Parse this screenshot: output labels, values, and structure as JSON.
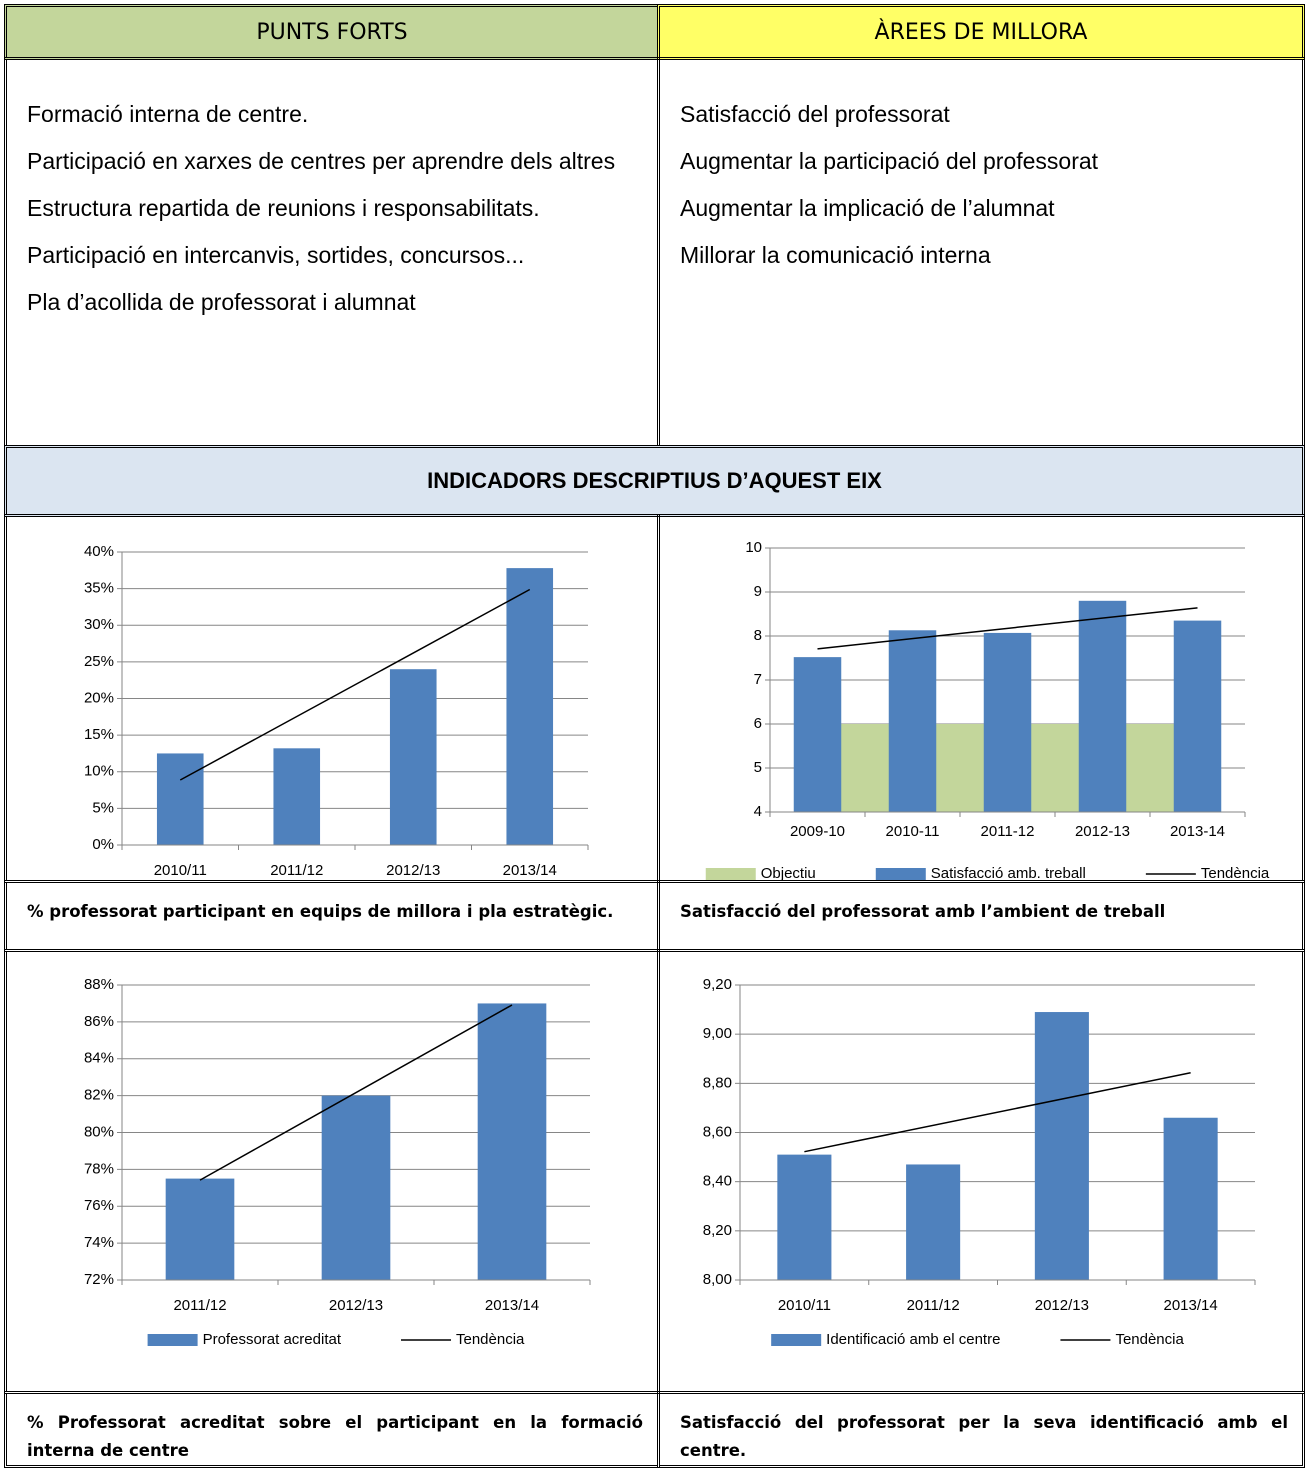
{
  "punts_forts": {
    "title": "PUNTS FORTS",
    "items": [
      "Formació interna de centre.",
      "Participació en xarxes de centres per aprendre dels altres",
      "Estructura repartida de reunions i responsabilitats.",
      "Participació en intercanvis, sortides, concursos...",
      "Pla d’acollida de professorat i alumnat"
    ]
  },
  "arees_de_millora": {
    "title": "ÀREES DE MILLORA",
    "items": [
      "Satisfacció del professorat",
      "Augmentar la participació del professorat",
      "Augmentar la implicació de l’alumnat",
      "Millorar la comunicació interna"
    ]
  },
  "indicadors": {
    "title": "INDICADORS DESCRIPTIUS D’AQUEST EIX"
  },
  "chart_data": [
    {
      "type": "bar",
      "caption": "% professorat participant en equips de millora i pla estratègic.",
      "categories": [
        "2010/11",
        "2011/12",
        "2012/13",
        "2013/14"
      ],
      "series": [
        {
          "kind": "bar",
          "color": "#4f81bd",
          "values": [
            12.5,
            13.2,
            24,
            37.8
          ]
        }
      ],
      "trend": {
        "color": "#000000"
      },
      "ylim": [
        0,
        40
      ],
      "yticks": [
        {
          "value": 0,
          "label": "0%"
        },
        {
          "value": 5,
          "label": "5%"
        },
        {
          "value": 10,
          "label": "10%"
        },
        {
          "value": 15,
          "label": "15%"
        },
        {
          "value": 20,
          "label": "20%"
        },
        {
          "value": 25,
          "label": "25%"
        },
        {
          "value": 30,
          "label": "30%"
        },
        {
          "value": 35,
          "label": "35%"
        },
        {
          "value": 40,
          "label": "40%"
        }
      ],
      "grid": true
    },
    {
      "type": "bar",
      "caption": "Satisfacció del professorat amb l’ambient de treball",
      "categories": [
        "2009-10",
        "2010-11",
        "2011-12",
        "2012-13",
        "2013-14"
      ],
      "series": [
        {
          "name": "Objectiu",
          "kind": "area",
          "color": "#c3d69b",
          "values": [
            6,
            6,
            6,
            6,
            6
          ]
        },
        {
          "name": "Satisfacció amb. treball",
          "kind": "bar",
          "color": "#4f81bd",
          "values": [
            7.52,
            8.13,
            8.07,
            8.8,
            8.35
          ]
        }
      ],
      "trend": {
        "name": "Tendència",
        "color": "#000000"
      },
      "ylim": [
        4,
        10
      ],
      "yticks": [
        4,
        5,
        6,
        7,
        8,
        9,
        10
      ],
      "grid": true
    },
    {
      "type": "bar",
      "caption": "% Professorat acreditat sobre el participant en la formació interna de centre",
      "categories": [
        "2011/12",
        "2012/13",
        "2013/14"
      ],
      "series": [
        {
          "name": "Professorat acreditat",
          "kind": "bar",
          "color": "#4f81bd",
          "values": [
            77.5,
            82,
            87
          ]
        }
      ],
      "trend": {
        "name": "Tendència",
        "color": "#000000"
      },
      "ylim": [
        72,
        88
      ],
      "yticks": [
        {
          "value": 72,
          "label": "72%"
        },
        {
          "value": 74,
          "label": "74%"
        },
        {
          "value": 76,
          "label": "76%"
        },
        {
          "value": 78,
          "label": "78%"
        },
        {
          "value": 80,
          "label": "80%"
        },
        {
          "value": 82,
          "label": "82%"
        },
        {
          "value": 84,
          "label": "84%"
        },
        {
          "value": 86,
          "label": "86%"
        },
        {
          "value": 88,
          "label": "88%"
        }
      ],
      "grid": true
    },
    {
      "type": "bar",
      "caption": "Satisfacció del professorat per la seva identificació amb el centre.",
      "categories": [
        "2010/11",
        "2011/12",
        "2012/13",
        "2013/14"
      ],
      "series": [
        {
          "name": "Identificació amb el centre",
          "kind": "bar",
          "color": "#4f81bd",
          "values": [
            8.51,
            8.47,
            9.09,
            8.66
          ]
        }
      ],
      "trend": {
        "name": "Tendència",
        "color": "#000000"
      },
      "ylim": [
        8,
        9.2
      ],
      "yticks": [
        {
          "value": 8,
          "label": "8,00"
        },
        {
          "value": 8.2,
          "label": "8,20"
        },
        {
          "value": 8.4,
          "label": "8,40"
        },
        {
          "value": 8.6,
          "label": "8,60"
        },
        {
          "value": 8.8,
          "label": "8,80"
        },
        {
          "value": 9,
          "label": "9,00"
        },
        {
          "value": 9.2,
          "label": "9,20"
        }
      ],
      "grid": true
    }
  ]
}
